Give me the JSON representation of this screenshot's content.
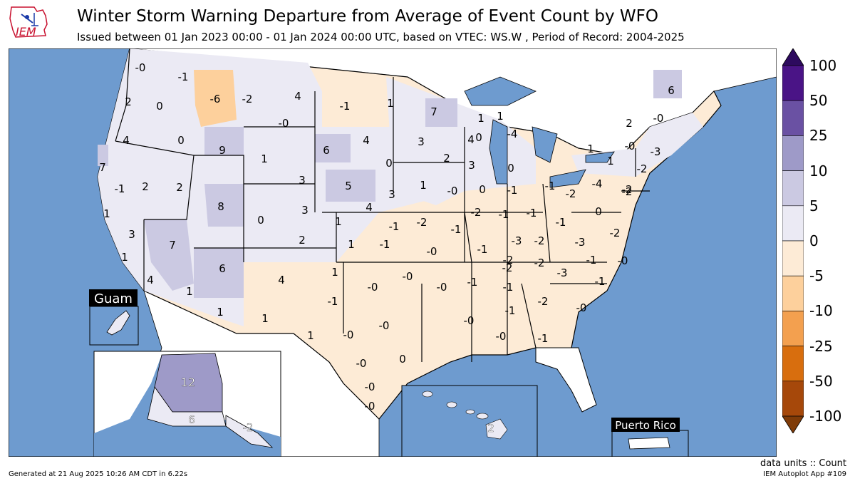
{
  "header": {
    "logo_text": "IEM",
    "title": "Winter Storm Warning Departure from Average of Event Count by WFO",
    "subtitle": "Issued between 01 Jan 2023 00:00 - 01 Jan 2024 00:00 UTC, based on VTEC: WS.W  , Period of Record: 2004-2025"
  },
  "colorbar": {
    "levels": [
      {
        "label": "100",
        "value": 100
      },
      {
        "label": "50",
        "value": 50
      },
      {
        "label": "25",
        "value": 25
      },
      {
        "label": "10",
        "value": 10
      },
      {
        "label": "5",
        "value": 5
      },
      {
        "label": "0",
        "value": 0
      },
      {
        "label": "-5",
        "value": -5
      },
      {
        "label": "-10",
        "value": -10
      },
      {
        "label": "-25",
        "value": -25
      },
      {
        "label": "-50",
        "value": -50
      },
      {
        "label": "-100",
        "value": -100
      }
    ],
    "colors": [
      "#4a1486",
      "#6a51a3",
      "#9e9ac8",
      "#cbc9e2",
      "#ebeaf4",
      "#fdebd6",
      "#fdd09c",
      "#f3a04f",
      "#d86e0e",
      "#a6480a"
    ],
    "extend_high_color": "#2d0a5e",
    "extend_low_color": "#7f3b08"
  },
  "colors": {
    "water": "#6e9bcf",
    "neutral_land": "#ffffff"
  },
  "map": {
    "insets": {
      "guam": "Guam",
      "puerto_rico": "Puerto Rico"
    },
    "wfo_values": [
      {
        "v": "-0"
      },
      {
        "v": "-1"
      },
      {
        "v": "-6"
      },
      {
        "v": "-2"
      },
      {
        "v": "4"
      },
      {
        "v": "6"
      },
      {
        "v": "2"
      },
      {
        "v": "0"
      },
      {
        "v": "-0"
      },
      {
        "v": "-1"
      },
      {
        "v": "1"
      },
      {
        "v": "7"
      },
      {
        "v": "1"
      },
      {
        "v": "1"
      },
      {
        "v": "0"
      },
      {
        "v": "-4"
      },
      {
        "v": "2"
      },
      {
        "v": "-0"
      },
      {
        "v": "4"
      },
      {
        "v": "0"
      },
      {
        "v": "9"
      },
      {
        "v": "6"
      },
      {
        "v": "4"
      },
      {
        "v": "3"
      },
      {
        "v": "4"
      },
      {
        "v": "1"
      },
      {
        "v": "-0"
      },
      {
        "v": "-3"
      },
      {
        "v": "7"
      },
      {
        "v": "1"
      },
      {
        "v": "3"
      },
      {
        "v": "0"
      },
      {
        "v": "2"
      },
      {
        "v": "3"
      },
      {
        "v": "0"
      },
      {
        "v": "1"
      },
      {
        "v": "-2"
      },
      {
        "v": "-1"
      },
      {
        "v": "-4"
      },
      {
        "v": "2"
      },
      {
        "v": "-2"
      },
      {
        "v": "2"
      },
      {
        "v": "5"
      },
      {
        "v": "3"
      },
      {
        "v": "1"
      },
      {
        "v": "-0"
      },
      {
        "v": "0"
      },
      {
        "v": "-1"
      },
      {
        "v": "-1"
      },
      {
        "v": "-2"
      },
      {
        "v": "-2"
      },
      {
        "v": "8"
      },
      {
        "v": "3"
      },
      {
        "v": "4"
      },
      {
        "v": "-2"
      },
      {
        "v": "-2"
      },
      {
        "v": "-1"
      },
      {
        "v": "-1"
      },
      {
        "v": "0"
      },
      {
        "v": "1"
      },
      {
        "v": "0"
      },
      {
        "v": "1"
      },
      {
        "v": "-1"
      },
      {
        "v": "-1"
      },
      {
        "v": "-1"
      },
      {
        "v": "3"
      },
      {
        "v": "2"
      },
      {
        "v": "1"
      },
      {
        "v": "-1"
      },
      {
        "v": "-0"
      },
      {
        "v": "-1"
      },
      {
        "v": "-3"
      },
      {
        "v": "-2"
      },
      {
        "v": "-3"
      },
      {
        "v": "-2"
      },
      {
        "v": "7"
      },
      {
        "v": "1"
      },
      {
        "v": "-0"
      },
      {
        "v": "-2"
      },
      {
        "v": "-1"
      },
      {
        "v": "6"
      },
      {
        "v": "4"
      },
      {
        "v": "1"
      },
      {
        "v": "-0"
      },
      {
        "v": "-0"
      },
      {
        "v": "-2"
      },
      {
        "v": "-3"
      },
      {
        "v": "-2"
      },
      {
        "v": "4"
      },
      {
        "v": "1"
      },
      {
        "v": "-0"
      },
      {
        "v": "-1"
      },
      {
        "v": "-1"
      },
      {
        "v": "-2"
      },
      {
        "v": "-1"
      },
      {
        "v": "1"
      },
      {
        "v": "-1"
      },
      {
        "v": "-0"
      },
      {
        "v": "-0"
      },
      {
        "v": "1"
      },
      {
        "v": "-0"
      },
      {
        "v": "-1"
      },
      {
        "v": "1"
      },
      {
        "v": "-0"
      },
      {
        "v": "-0"
      },
      {
        "v": "-1"
      },
      {
        "v": "-0"
      },
      {
        "v": "0"
      },
      {
        "v": "-0"
      },
      {
        "v": "-0"
      },
      {
        "v": "12"
      },
      {
        "v": "6"
      },
      {
        "v": "-2"
      },
      {
        "v": "2"
      }
    ]
  },
  "footer": {
    "generated": "Generated at 21 Aug 2025 10:26 AM CDT in 6.22s",
    "units": "data units :: Count",
    "app": "IEM Autoplot App #109"
  }
}
